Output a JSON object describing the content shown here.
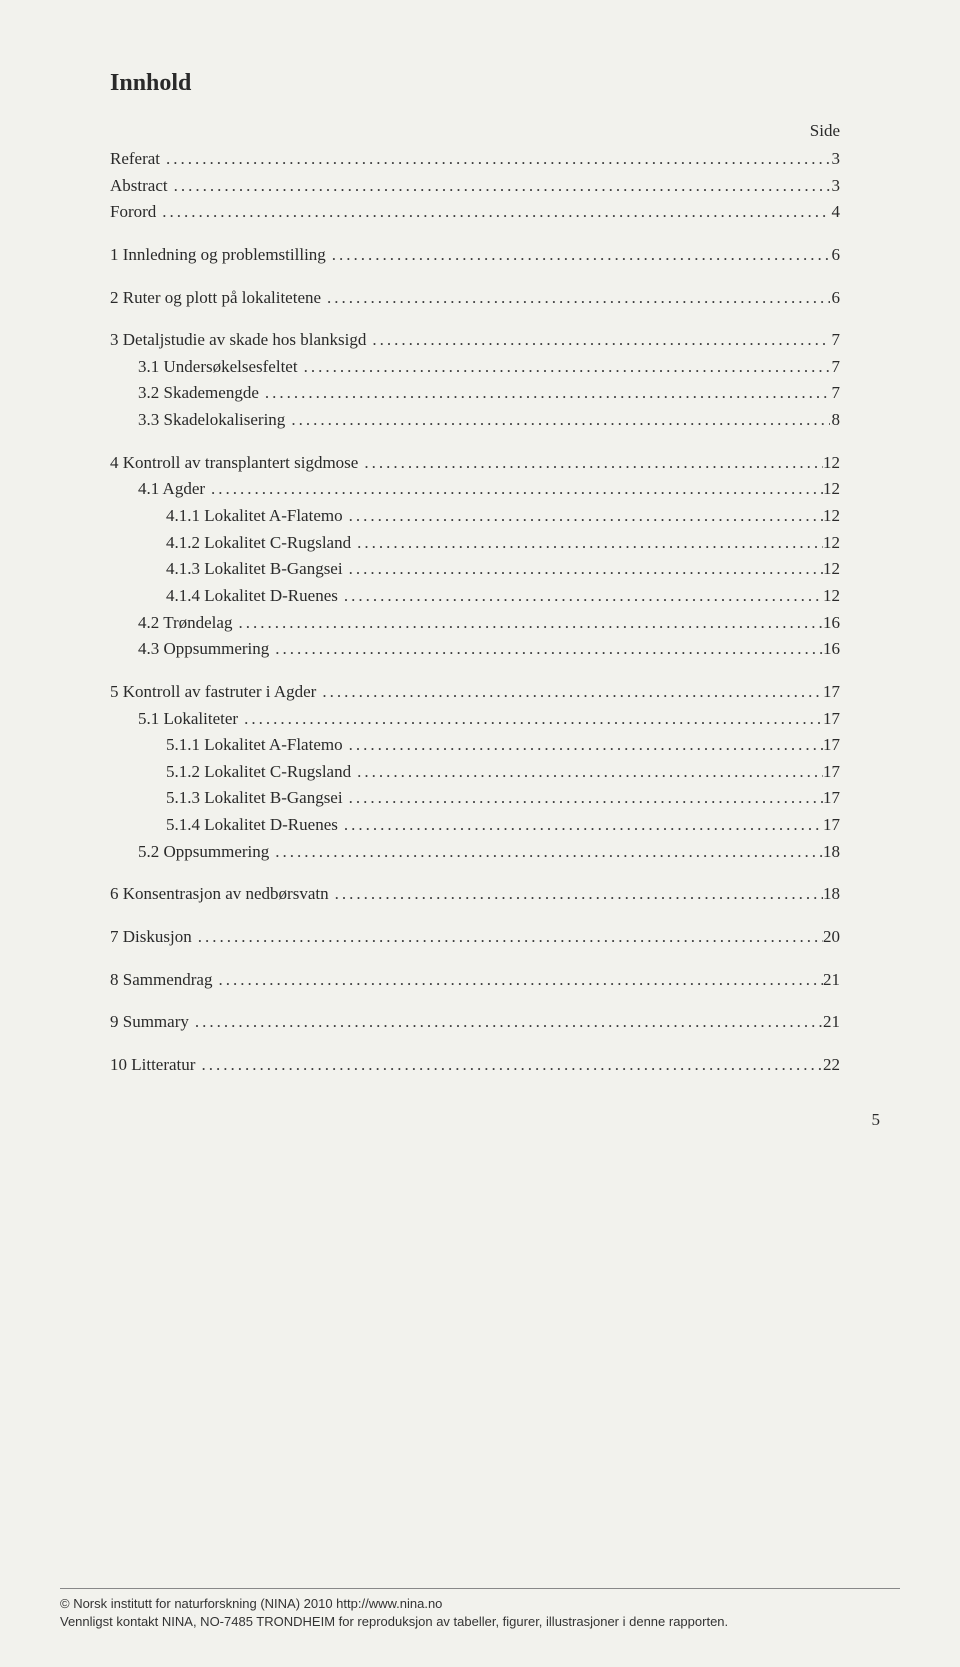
{
  "title": "Innhold",
  "side_label": "Side",
  "page_number": "5",
  "footer": {
    "line1": "© Norsk institutt for naturforskning (NINA) 2010 http://www.nina.no",
    "line2": "Vennligst kontakt NINA, NO-7485 TRONDHEIM for reproduksjon av tabeller, figurer, illustrasjoner i denne rapporten."
  },
  "toc": [
    {
      "label": "Referat",
      "page": "3",
      "indent": 0,
      "gap": false
    },
    {
      "label": "Abstract",
      "page": "3",
      "indent": 0,
      "gap": false
    },
    {
      "label": "Forord",
      "page": "4",
      "indent": 0,
      "gap": false
    },
    {
      "label": "1 Innledning og problemstilling",
      "page": "6",
      "indent": 0,
      "gap": true
    },
    {
      "label": "2 Ruter og plott på lokalitetene",
      "page": "6",
      "indent": 0,
      "gap": true
    },
    {
      "label": "3 Detaljstudie av skade hos blanksigd",
      "page": "7",
      "indent": 0,
      "gap": true
    },
    {
      "label": "3.1 Undersøkelsesfeltet",
      "page": "7",
      "indent": 1,
      "gap": false
    },
    {
      "label": "3.2 Skademengde",
      "page": "7",
      "indent": 1,
      "gap": false
    },
    {
      "label": "3.3 Skadelokalisering",
      "page": "8",
      "indent": 1,
      "gap": false
    },
    {
      "label": "4 Kontroll av transplantert sigdmose",
      "page": "12",
      "indent": 0,
      "gap": true
    },
    {
      "label": "4.1 Agder",
      "page": "12",
      "indent": 1,
      "gap": false
    },
    {
      "label": "4.1.1 Lokalitet A-Flatemo",
      "page": "12",
      "indent": 2,
      "gap": false
    },
    {
      "label": "4.1.2 Lokalitet C-Rugsland",
      "page": "12",
      "indent": 2,
      "gap": false
    },
    {
      "label": "4.1.3 Lokalitet B-Gangsei",
      "page": "12",
      "indent": 2,
      "gap": false
    },
    {
      "label": "4.1.4 Lokalitet D-Ruenes",
      "page": "12",
      "indent": 2,
      "gap": false
    },
    {
      "label": "4.2 Trøndelag",
      "page": "16",
      "indent": 1,
      "gap": false
    },
    {
      "label": "4.3 Oppsummering",
      "page": "16",
      "indent": 1,
      "gap": false
    },
    {
      "label": "5 Kontroll av fastruter i Agder",
      "page": "17",
      "indent": 0,
      "gap": true
    },
    {
      "label": "5.1 Lokaliteter",
      "page": "17",
      "indent": 1,
      "gap": false
    },
    {
      "label": "5.1.1 Lokalitet A-Flatemo",
      "page": "17",
      "indent": 2,
      "gap": false
    },
    {
      "label": "5.1.2 Lokalitet C-Rugsland",
      "page": "17",
      "indent": 2,
      "gap": false
    },
    {
      "label": "5.1.3 Lokalitet B-Gangsei",
      "page": "17",
      "indent": 2,
      "gap": false
    },
    {
      "label": "5.1.4 Lokalitet D-Ruenes",
      "page": "17",
      "indent": 2,
      "gap": false
    },
    {
      "label": "5.2 Oppsummering",
      "page": "18",
      "indent": 1,
      "gap": false
    },
    {
      "label": "6 Konsentrasjon av nedbørsvatn",
      "page": "18",
      "indent": 0,
      "gap": true
    },
    {
      "label": "7 Diskusjon",
      "page": "20",
      "indent": 0,
      "gap": true
    },
    {
      "label": "8 Sammendrag",
      "page": "21",
      "indent": 0,
      "gap": true
    },
    {
      "label": "9 Summary",
      "page": "21",
      "indent": 0,
      "gap": true
    },
    {
      "label": "10 Litteratur",
      "page": "22",
      "indent": 0,
      "gap": true
    }
  ]
}
